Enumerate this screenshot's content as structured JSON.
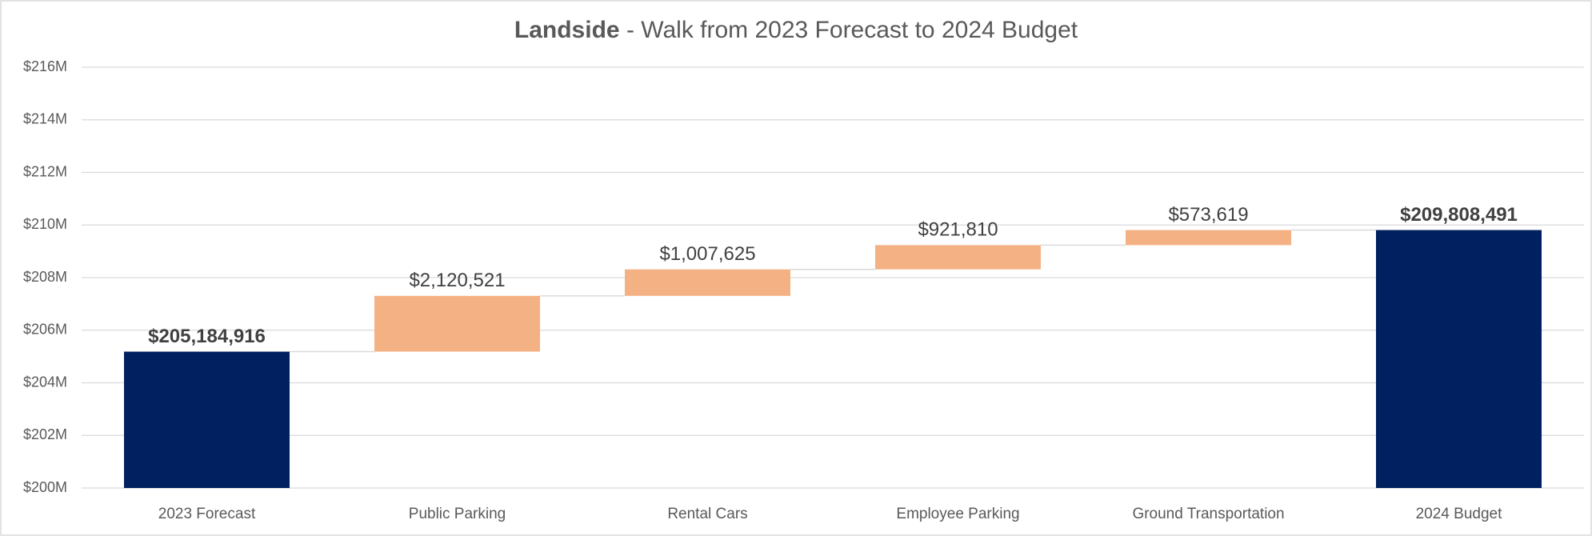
{
  "chart_data": {
    "type": "waterfall",
    "title_bold": "Landside",
    "title": "- Walk from 2023 Forecast to 2024 Budget",
    "categories": [
      "2023 Forecast",
      "Public Parking",
      "Rental Cars",
      "Employee Parking",
      "Ground Transportation",
      "2024 Budget"
    ],
    "values": [
      205184916,
      2120521,
      1007625,
      921810,
      573619,
      209808491
    ],
    "value_labels": [
      "$205,184,916",
      "$2,120,521",
      "$1,007,625",
      "$921,810",
      "$573,619",
      "$209,808,491"
    ],
    "measures": [
      "total",
      "increase",
      "increase",
      "increase",
      "increase",
      "total"
    ],
    "colors": {
      "total": "#002060",
      "increase": "#f4b183"
    },
    "ylim": [
      200000000,
      216000000
    ],
    "yticks": [
      {
        "value": 200000000,
        "label": "$200M"
      },
      {
        "value": 202000000,
        "label": "$202M"
      },
      {
        "value": 204000000,
        "label": "$204M"
      },
      {
        "value": 206000000,
        "label": "$206M"
      },
      {
        "value": 208000000,
        "label": "$208M"
      },
      {
        "value": 210000000,
        "label": "$210M"
      },
      {
        "value": 212000000,
        "label": "$212M"
      },
      {
        "value": 214000000,
        "label": "$214M"
      },
      {
        "value": 216000000,
        "label": "$216M"
      }
    ],
    "grid": true
  }
}
